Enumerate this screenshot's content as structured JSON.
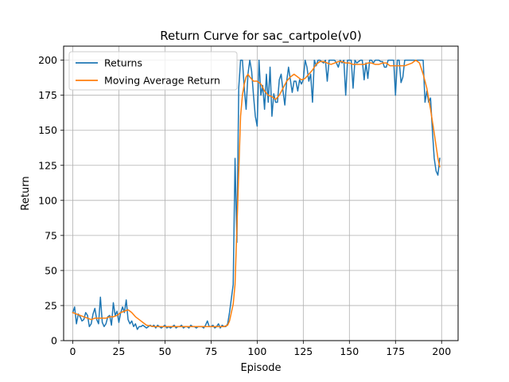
{
  "chart_data": {
    "type": "line",
    "title": "Return Curve for sac_cartpole(v0)",
    "xlabel": "Episode",
    "ylabel": "Return",
    "xlim": [
      -4.95,
      208.95
    ],
    "ylim": [
      0,
      210
    ],
    "xticks": [
      0,
      25,
      50,
      75,
      100,
      125,
      150,
      175,
      200
    ],
    "yticks": [
      0,
      25,
      50,
      75,
      100,
      125,
      150,
      175,
      200
    ],
    "grid": true,
    "legend_position": "top-left",
    "series": [
      {
        "name": "Returns",
        "color": "#1f77b4",
        "x": [
          0,
          1,
          2,
          3,
          4,
          5,
          6,
          7,
          8,
          9,
          10,
          11,
          12,
          13,
          14,
          15,
          16,
          17,
          18,
          19,
          20,
          21,
          22,
          23,
          24,
          25,
          26,
          27,
          28,
          29,
          30,
          31,
          32,
          33,
          34,
          35,
          36,
          37,
          38,
          39,
          40,
          41,
          42,
          43,
          44,
          45,
          46,
          47,
          48,
          49,
          50,
          51,
          52,
          53,
          54,
          55,
          56,
          57,
          58,
          59,
          60,
          61,
          62,
          63,
          64,
          65,
          66,
          67,
          68,
          69,
          70,
          71,
          72,
          73,
          74,
          75,
          76,
          77,
          78,
          79,
          80,
          81,
          82,
          83,
          84,
          85,
          86,
          87,
          88,
          89,
          90,
          91,
          92,
          93,
          94,
          95,
          96,
          97,
          98,
          99,
          100,
          101,
          102,
          103,
          104,
          105,
          106,
          107,
          108,
          109,
          110,
          111,
          112,
          113,
          114,
          115,
          116,
          117,
          118,
          119,
          120,
          121,
          122,
          123,
          124,
          125,
          126,
          127,
          128,
          129,
          130,
          131,
          132,
          133,
          134,
          135,
          136,
          137,
          138,
          139,
          140,
          141,
          142,
          143,
          144,
          145,
          146,
          147,
          148,
          149,
          150,
          151,
          152,
          153,
          154,
          155,
          156,
          157,
          158,
          159,
          160,
          161,
          162,
          163,
          164,
          165,
          166,
          167,
          168,
          169,
          170,
          171,
          172,
          173,
          174,
          175,
          176,
          177,
          178,
          179,
          180,
          181,
          182,
          183,
          184,
          185,
          186,
          187,
          188,
          189,
          190,
          191,
          192,
          193,
          194,
          195,
          196,
          197,
          198,
          199
        ],
        "y": [
          20,
          24,
          12,
          19,
          17,
          14,
          15,
          20,
          18,
          10,
          12,
          19,
          23,
          15,
          12,
          31,
          13,
          10,
          12,
          17,
          18,
          11,
          27,
          18,
          21,
          13,
          20,
          24,
          20,
          29,
          15,
          12,
          14,
          10,
          12,
          8,
          10,
          10,
          11,
          10,
          9,
          10,
          11,
          10,
          11,
          9,
          11,
          10,
          9,
          10,
          11,
          9,
          10,
          9,
          10,
          11,
          9,
          10,
          10,
          11,
          9,
          10,
          10,
          9,
          11,
          10,
          10,
          9,
          10,
          10,
          10,
          9,
          11,
          14,
          10,
          10,
          11,
          9,
          10,
          12,
          9,
          11,
          10,
          10,
          12,
          20,
          30,
          40,
          130,
          70,
          180,
          200,
          200,
          180,
          165,
          190,
          200,
          192,
          175,
          160,
          153,
          200,
          175,
          182,
          165,
          190,
          170,
          195,
          160,
          176,
          170,
          170,
          186,
          190,
          178,
          168,
          185,
          195,
          186,
          177,
          185,
          185,
          178,
          186,
          183,
          186,
          200,
          195,
          185,
          190,
          170,
          200,
          196,
          200,
          200,
          199,
          198,
          200,
          185,
          200,
          200,
          200,
          200,
          198,
          195,
          200,
          198,
          200,
          175,
          200,
          200,
          200,
          180,
          200,
          198,
          199,
          200,
          200,
          186,
          198,
          187,
          200,
          200,
          198,
          200,
          200,
          200,
          199,
          199,
          195,
          195,
          200,
          200,
          200,
          200,
          175,
          200,
          200,
          184,
          188,
          200,
          200,
          200,
          200,
          200,
          200,
          200,
          200,
          200,
          200,
          200,
          170,
          178,
          170,
          173,
          150,
          130,
          121,
          118,
          130
        ],
        "width": 1.5
      },
      {
        "name": "Moving Average Return",
        "color": "#ff7f0e",
        "x": [
          0,
          2,
          4,
          6,
          8,
          10,
          12,
          14,
          16,
          18,
          20,
          22,
          24,
          26,
          28,
          30,
          32,
          34,
          36,
          38,
          40,
          44,
          48,
          52,
          56,
          60,
          64,
          68,
          72,
          76,
          80,
          82,
          84,
          85,
          86,
          87,
          88,
          89,
          90,
          91,
          92,
          93,
          94,
          95,
          96,
          98,
          100,
          102,
          104,
          106,
          108,
          110,
          112,
          114,
          116,
          118,
          120,
          122,
          124,
          126,
          128,
          130,
          132,
          134,
          136,
          138,
          140,
          142,
          144,
          146,
          148,
          150,
          152,
          154,
          156,
          158,
          160,
          162,
          164,
          166,
          168,
          170,
          172,
          174,
          176,
          178,
          180,
          182,
          184,
          186,
          188,
          190,
          192,
          194,
          196,
          198,
          199
        ],
        "y": [
          20,
          19,
          18,
          17,
          16,
          15,
          16,
          16,
          16,
          16,
          17,
          17,
          18,
          20,
          21,
          22,
          20,
          17,
          15,
          13,
          11,
          10,
          10,
          10,
          10,
          10,
          10,
          10,
          10,
          10,
          10,
          10,
          11,
          14,
          20,
          26,
          40,
          80,
          120,
          160,
          175,
          183,
          188,
          190,
          188,
          185,
          185,
          183,
          178,
          175,
          174,
          172,
          175,
          180,
          185,
          188,
          190,
          188,
          186,
          187,
          190,
          193,
          197,
          199,
          199,
          198,
          197,
          198,
          199,
          199,
          198,
          198,
          197,
          197,
          197,
          197,
          198,
          198,
          197,
          197,
          198,
          198,
          196,
          196,
          196,
          196,
          196,
          197,
          198,
          200,
          198,
          190,
          180,
          165,
          148,
          130,
          124
        ],
        "width": 1.5
      }
    ]
  }
}
